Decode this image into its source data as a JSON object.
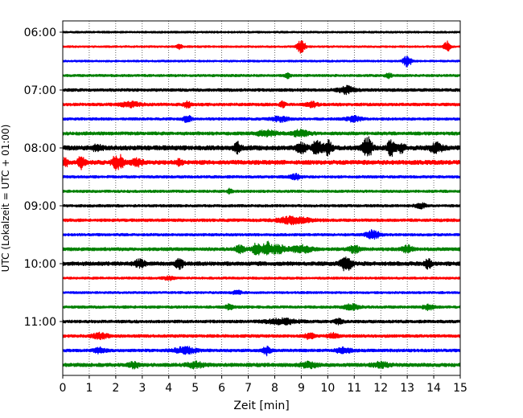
{
  "chart_data": {
    "type": "line",
    "title": "",
    "xlabel": "Zeit  [min]",
    "ylabel": "UTC (Lokalzeit = UTC + 01:00)",
    "xlim": [
      0,
      15
    ],
    "x_ticks": [
      "0",
      "1",
      "2",
      "3",
      "4",
      "5",
      "6",
      "7",
      "8",
      "9",
      "10",
      "11",
      "12",
      "13",
      "14",
      "15"
    ],
    "y_ticks": [
      "06:00",
      "07:00",
      "08:00",
      "09:00",
      "10:00",
      "11:00"
    ],
    "y_tick_rows": [
      0,
      4,
      8,
      12,
      16,
      20
    ],
    "vertical_grid": true,
    "row_interval_minutes": 15,
    "row_colors": [
      "#000000",
      "#ff0000",
      "#0000ff",
      "#008000"
    ],
    "rows": [
      {
        "start": "06:00",
        "amp": 1.2,
        "events": [],
        "noise": 1
      },
      {
        "start": "06:15",
        "amp": 1.2,
        "events": [
          [
            4.4,
            3,
            0.1
          ],
          [
            9.0,
            8,
            0.15
          ],
          [
            14.5,
            6,
            0.12
          ]
        ],
        "noise": 2
      },
      {
        "start": "06:30",
        "amp": 1.2,
        "events": [
          [
            13.0,
            7,
            0.15
          ]
        ],
        "noise": 3
      },
      {
        "start": "06:45",
        "amp": 1.5,
        "events": [
          [
            8.5,
            3,
            0.1
          ],
          [
            12.3,
            3,
            0.1
          ]
        ],
        "noise": 4
      },
      {
        "start": "07:00",
        "amp": 1.8,
        "events": [
          [
            10.7,
            4,
            0.3
          ]
        ],
        "noise": 5
      },
      {
        "start": "07:15",
        "amp": 1.8,
        "events": [
          [
            2.5,
            3,
            0.4
          ],
          [
            4.7,
            4,
            0.12
          ],
          [
            8.3,
            3,
            0.1
          ],
          [
            9.4,
            3,
            0.2
          ]
        ],
        "noise": 6
      },
      {
        "start": "07:30",
        "amp": 1.6,
        "events": [
          [
            4.7,
            4,
            0.15
          ],
          [
            8.2,
            3,
            0.3
          ],
          [
            11.0,
            3,
            0.3
          ]
        ],
        "noise": 7
      },
      {
        "start": "07:45",
        "amp": 2.0,
        "events": [
          [
            7.7,
            3,
            0.4
          ],
          [
            9.0,
            4,
            0.3
          ]
        ],
        "noise": 8
      },
      {
        "start": "08:00",
        "amp": 2.8,
        "events": [
          [
            1.3,
            3,
            0.2
          ],
          [
            6.6,
            6,
            0.12
          ],
          [
            9.0,
            5,
            0.2
          ],
          [
            9.6,
            10,
            0.15
          ],
          [
            10.0,
            9,
            0.15
          ],
          [
            11.5,
            12,
            0.18
          ],
          [
            12.4,
            9,
            0.15
          ],
          [
            12.8,
            6,
            0.12
          ],
          [
            14.1,
            5,
            0.25
          ]
        ],
        "noise": 9
      },
      {
        "start": "08:15",
        "amp": 2.6,
        "events": [
          [
            0.1,
            5,
            0.1
          ],
          [
            0.7,
            8,
            0.12
          ],
          [
            2.0,
            7,
            0.15
          ],
          [
            2.2,
            6,
            0.12
          ],
          [
            2.8,
            4,
            0.2
          ],
          [
            4.4,
            4,
            0.1
          ]
        ],
        "noise": 10
      },
      {
        "start": "08:30",
        "amp": 1.6,
        "events": [
          [
            8.8,
            3,
            0.2
          ]
        ],
        "noise": 11
      },
      {
        "start": "08:45",
        "amp": 1.6,
        "events": [
          [
            6.3,
            3,
            0.1
          ]
        ],
        "noise": 12
      },
      {
        "start": "09:00",
        "amp": 1.6,
        "events": [
          [
            13.5,
            3,
            0.2
          ]
        ],
        "noise": 13
      },
      {
        "start": "09:15",
        "amp": 1.8,
        "events": [
          [
            8.7,
            4,
            0.6
          ]
        ],
        "noise": 14
      },
      {
        "start": "09:30",
        "amp": 1.6,
        "events": [
          [
            11.7,
            5,
            0.25
          ]
        ],
        "noise": 15
      },
      {
        "start": "09:45",
        "amp": 2.0,
        "events": [
          [
            6.7,
            4,
            0.2
          ],
          [
            7.3,
            8,
            0.15
          ],
          [
            7.7,
            8,
            0.15
          ],
          [
            8.1,
            5,
            0.3
          ],
          [
            9.0,
            4,
            0.4
          ],
          [
            11.0,
            4,
            0.2
          ],
          [
            13.0,
            4,
            0.2
          ]
        ],
        "noise": 16
      },
      {
        "start": "10:00",
        "amp": 2.4,
        "events": [
          [
            2.9,
            4,
            0.2
          ],
          [
            4.4,
            5,
            0.15
          ],
          [
            10.7,
            9,
            0.2
          ],
          [
            13.8,
            6,
            0.12
          ]
        ],
        "noise": 17
      },
      {
        "start": "10:15",
        "amp": 1.4,
        "events": [
          [
            4.0,
            2,
            0.2
          ]
        ],
        "noise": 18
      },
      {
        "start": "10:30",
        "amp": 1.4,
        "events": [
          [
            6.6,
            2,
            0.2
          ]
        ],
        "noise": 19
      },
      {
        "start": "10:45",
        "amp": 1.6,
        "events": [
          [
            6.3,
            3,
            0.15
          ],
          [
            10.9,
            3,
            0.3
          ],
          [
            13.8,
            3,
            0.2
          ]
        ],
        "noise": 20
      },
      {
        "start": "11:00",
        "amp": 1.8,
        "events": [
          [
            8.3,
            3,
            0.6
          ],
          [
            10.4,
            3,
            0.15
          ]
        ],
        "noise": 21
      },
      {
        "start": "11:15",
        "amp": 1.8,
        "events": [
          [
            1.4,
            3,
            0.3
          ],
          [
            9.3,
            4,
            0.15
          ],
          [
            10.2,
            3,
            0.2
          ]
        ],
        "noise": 22
      },
      {
        "start": "11:30",
        "amp": 1.8,
        "events": [
          [
            1.4,
            3,
            0.2
          ],
          [
            4.6,
            4,
            0.4
          ],
          [
            7.7,
            5,
            0.15
          ],
          [
            10.6,
            3,
            0.3
          ]
        ],
        "noise": 23
      },
      {
        "start": "11:45",
        "amp": 2.2,
        "events": [
          [
            2.7,
            3,
            0.2
          ],
          [
            5.0,
            3,
            0.3
          ],
          [
            9.3,
            3,
            0.3
          ],
          [
            12.0,
            3,
            0.3
          ]
        ],
        "noise": 24
      }
    ]
  }
}
